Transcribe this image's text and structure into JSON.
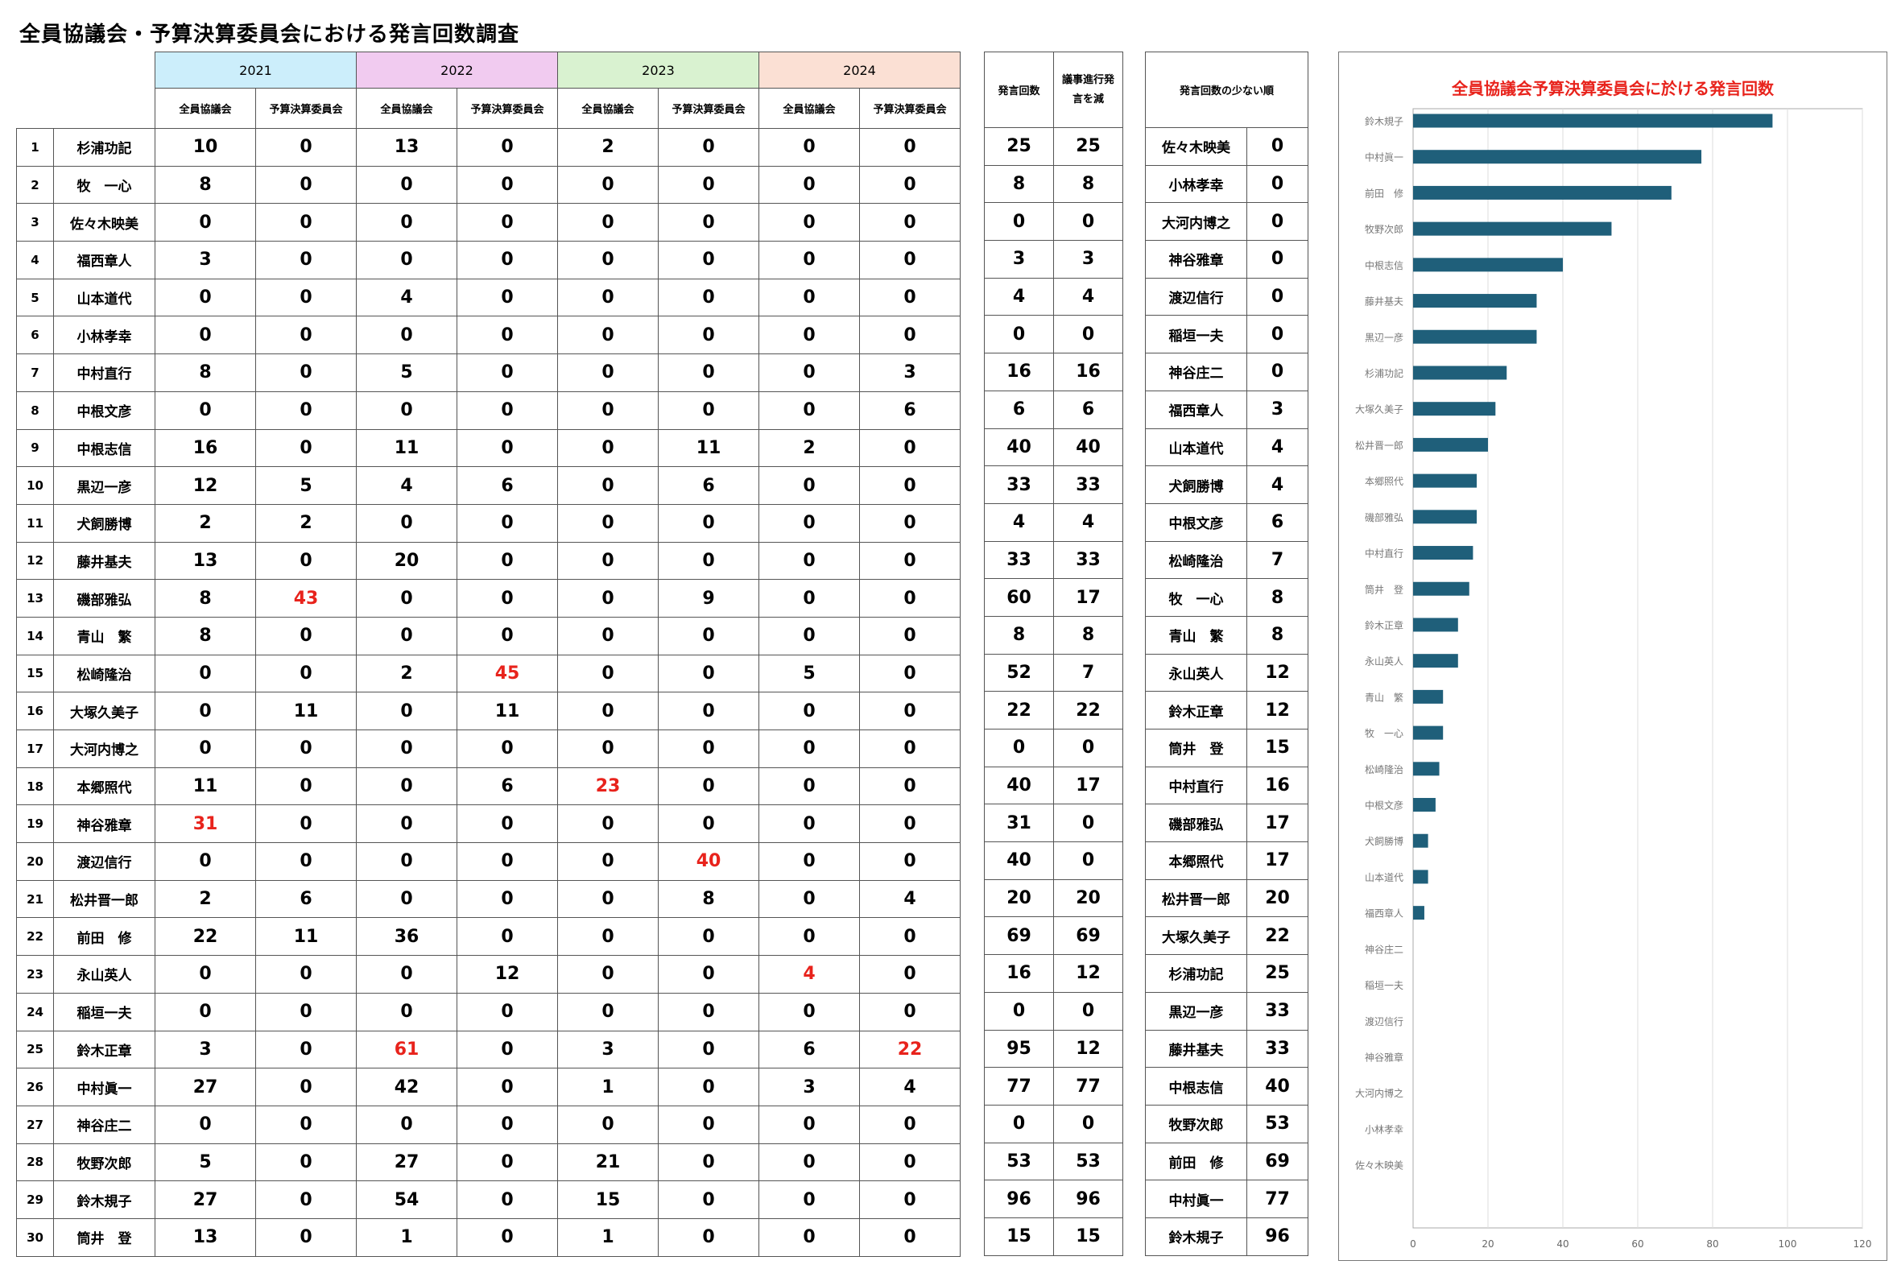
{
  "page_title": "全員協議会・予算決算委員会における発言回数調査",
  "years": [
    "2021",
    "2022",
    "2023",
    "2024"
  ],
  "year_colors": [
    "#cceefb",
    "#f1cbf0",
    "#d9f2d0",
    "#fbe0d4"
  ],
  "sub_headers": [
    "全員協議会",
    "予算決算委員会"
  ],
  "totals_headers": {
    "count": "発言回数",
    "excl": "議事進行発言を減"
  },
  "ranking_header": "発言回数の少ない順",
  "highlight_color": "#e8231c",
  "members": [
    {
      "no": 1,
      "name": "杉浦功記",
      "v": [
        10,
        0,
        13,
        0,
        2,
        0,
        0,
        0
      ],
      "total": 25,
      "excl": 25,
      "red": []
    },
    {
      "no": 2,
      "name": "牧　一心",
      "v": [
        8,
        0,
        0,
        0,
        0,
        0,
        0,
        0
      ],
      "total": 8,
      "excl": 8,
      "red": []
    },
    {
      "no": 3,
      "name": "佐々木映美",
      "v": [
        0,
        0,
        0,
        0,
        0,
        0,
        0,
        0
      ],
      "total": 0,
      "excl": 0,
      "red": []
    },
    {
      "no": 4,
      "name": "福西章人",
      "v": [
        3,
        0,
        0,
        0,
        0,
        0,
        0,
        0
      ],
      "total": 3,
      "excl": 3,
      "red": []
    },
    {
      "no": 5,
      "name": "山本道代",
      "v": [
        0,
        0,
        4,
        0,
        0,
        0,
        0,
        0
      ],
      "total": 4,
      "excl": 4,
      "red": []
    },
    {
      "no": 6,
      "name": "小林孝幸",
      "v": [
        0,
        0,
        0,
        0,
        0,
        0,
        0,
        0
      ],
      "total": 0,
      "excl": 0,
      "red": []
    },
    {
      "no": 7,
      "name": "中村直行",
      "v": [
        8,
        0,
        5,
        0,
        0,
        0,
        0,
        3
      ],
      "total": 16,
      "excl": 16,
      "red": []
    },
    {
      "no": 8,
      "name": "中根文彦",
      "v": [
        0,
        0,
        0,
        0,
        0,
        0,
        0,
        6
      ],
      "total": 6,
      "excl": 6,
      "red": []
    },
    {
      "no": 9,
      "name": "中根志信",
      "v": [
        16,
        0,
        11,
        0,
        0,
        11,
        2,
        0
      ],
      "total": 40,
      "excl": 40,
      "red": []
    },
    {
      "no": 10,
      "name": "黒辺一彦",
      "v": [
        12,
        5,
        4,
        6,
        0,
        6,
        0,
        0
      ],
      "total": 33,
      "excl": 33,
      "red": []
    },
    {
      "no": 11,
      "name": "犬飼勝博",
      "v": [
        2,
        2,
        0,
        0,
        0,
        0,
        0,
        0
      ],
      "total": 4,
      "excl": 4,
      "red": []
    },
    {
      "no": 12,
      "name": "藤井基夫",
      "v": [
        13,
        0,
        20,
        0,
        0,
        0,
        0,
        0
      ],
      "total": 33,
      "excl": 33,
      "red": []
    },
    {
      "no": 13,
      "name": "磯部雅弘",
      "v": [
        8,
        43,
        0,
        0,
        0,
        9,
        0,
        0
      ],
      "total": 60,
      "excl": 17,
      "red": [
        1
      ]
    },
    {
      "no": 14,
      "name": "青山　繁",
      "v": [
        8,
        0,
        0,
        0,
        0,
        0,
        0,
        0
      ],
      "total": 8,
      "excl": 8,
      "red": []
    },
    {
      "no": 15,
      "name": "松崎隆治",
      "v": [
        0,
        0,
        2,
        45,
        0,
        0,
        5,
        0
      ],
      "total": 52,
      "excl": 7,
      "red": [
        3
      ]
    },
    {
      "no": 16,
      "name": "大塚久美子",
      "v": [
        0,
        11,
        0,
        11,
        0,
        0,
        0,
        0
      ],
      "total": 22,
      "excl": 22,
      "red": []
    },
    {
      "no": 17,
      "name": "大河内博之",
      "v": [
        0,
        0,
        0,
        0,
        0,
        0,
        0,
        0
      ],
      "total": 0,
      "excl": 0,
      "red": []
    },
    {
      "no": 18,
      "name": "本郷照代",
      "v": [
        11,
        0,
        0,
        6,
        23,
        0,
        0,
        0
      ],
      "total": 40,
      "excl": 17,
      "red": [
        4
      ]
    },
    {
      "no": 19,
      "name": "神谷雅章",
      "v": [
        31,
        0,
        0,
        0,
        0,
        0,
        0,
        0
      ],
      "total": 31,
      "excl": 0,
      "red": [
        0
      ]
    },
    {
      "no": 20,
      "name": "渡辺信行",
      "v": [
        0,
        0,
        0,
        0,
        0,
        40,
        0,
        0
      ],
      "total": 40,
      "excl": 0,
      "red": [
        5
      ]
    },
    {
      "no": 21,
      "name": "松井晋一郎",
      "v": [
        2,
        6,
        0,
        0,
        0,
        8,
        0,
        4
      ],
      "total": 20,
      "excl": 20,
      "red": []
    },
    {
      "no": 22,
      "name": "前田　修",
      "v": [
        22,
        11,
        36,
        0,
        0,
        0,
        0,
        0
      ],
      "total": 69,
      "excl": 69,
      "red": []
    },
    {
      "no": 23,
      "name": "永山英人",
      "v": [
        0,
        0,
        0,
        12,
        0,
        0,
        4,
        0
      ],
      "total": 16,
      "excl": 12,
      "red": [
        6
      ]
    },
    {
      "no": 24,
      "name": "稲垣一夫",
      "v": [
        0,
        0,
        0,
        0,
        0,
        0,
        0,
        0
      ],
      "total": 0,
      "excl": 0,
      "red": []
    },
    {
      "no": 25,
      "name": "鈴木正章",
      "v": [
        3,
        0,
        61,
        0,
        3,
        0,
        6,
        22
      ],
      "total": 95,
      "excl": 12,
      "red": [
        2,
        7
      ]
    },
    {
      "no": 26,
      "name": "中村眞一",
      "v": [
        27,
        0,
        42,
        0,
        1,
        0,
        3,
        4
      ],
      "total": 77,
      "excl": 77,
      "red": []
    },
    {
      "no": 27,
      "name": "神谷庄二",
      "v": [
        0,
        0,
        0,
        0,
        0,
        0,
        0,
        0
      ],
      "total": 0,
      "excl": 0,
      "red": []
    },
    {
      "no": 28,
      "name": "牧野次郎",
      "v": [
        5,
        0,
        27,
        0,
        21,
        0,
        0,
        0
      ],
      "total": 53,
      "excl": 53,
      "red": []
    },
    {
      "no": 29,
      "name": "鈴木規子",
      "v": [
        27,
        0,
        54,
        0,
        15,
        0,
        0,
        0
      ],
      "total": 96,
      "excl": 96,
      "red": []
    },
    {
      "no": 30,
      "name": "筒井　登",
      "v": [
        13,
        0,
        1,
        0,
        1,
        0,
        0,
        0
      ],
      "total": 15,
      "excl": 15,
      "red": []
    }
  ],
  "ranking": [
    {
      "name": "佐々木映美",
      "value": 0
    },
    {
      "name": "小林孝幸",
      "value": 0
    },
    {
      "name": "大河内博之",
      "value": 0
    },
    {
      "name": "神谷雅章",
      "value": 0
    },
    {
      "name": "渡辺信行",
      "value": 0
    },
    {
      "name": "稲垣一夫",
      "value": 0
    },
    {
      "name": "神谷庄二",
      "value": 0
    },
    {
      "name": "福西章人",
      "value": 3
    },
    {
      "name": "山本道代",
      "value": 4
    },
    {
      "name": "犬飼勝博",
      "value": 4
    },
    {
      "name": "中根文彦",
      "value": 6
    },
    {
      "name": "松崎隆治",
      "value": 7
    },
    {
      "name": "牧　一心",
      "value": 8
    },
    {
      "name": "青山　繁",
      "value": 8
    },
    {
      "name": "永山英人",
      "value": 12
    },
    {
      "name": "鈴木正章",
      "value": 12
    },
    {
      "name": "筒井　登",
      "value": 15
    },
    {
      "name": "中村直行",
      "value": 16
    },
    {
      "name": "磯部雅弘",
      "value": 17
    },
    {
      "name": "本郷照代",
      "value": 17
    },
    {
      "name": "松井晋一郎",
      "value": 20
    },
    {
      "name": "大塚久美子",
      "value": 22
    },
    {
      "name": "杉浦功記",
      "value": 25
    },
    {
      "name": "黒辺一彦",
      "value": 33
    },
    {
      "name": "藤井基夫",
      "value": 33
    },
    {
      "name": "中根志信",
      "value": 40
    },
    {
      "name": "牧野次郎",
      "value": 53
    },
    {
      "name": "前田　修",
      "value": 69
    },
    {
      "name": "中村眞一",
      "value": 77
    },
    {
      "name": "鈴木規子",
      "value": 96
    }
  ],
  "chart_data": {
    "type": "bar",
    "orientation": "horizontal",
    "title": "全員協議会予算決算委員会に於ける発言回数",
    "title_color": "#e8231c",
    "bar_color": "#1f5f7a",
    "categories": [
      "鈴木規子",
      "中村眞一",
      "前田　修",
      "牧野次郎",
      "中根志信",
      "藤井基夫",
      "黒辺一彦",
      "杉浦功記",
      "大塚久美子",
      "松井晋一郎",
      "本郷照代",
      "磯部雅弘",
      "中村直行",
      "筒井　登",
      "鈴木正章",
      "永山英人",
      "青山　繁",
      "牧　一心",
      "松崎隆治",
      "中根文彦",
      "犬飼勝博",
      "山本道代",
      "福西章人",
      "神谷庄二",
      "稲垣一夫",
      "渡辺信行",
      "神谷雅章",
      "大河内博之",
      "小林孝幸",
      "佐々木映美"
    ],
    "values": [
      96,
      77,
      69,
      53,
      40,
      33,
      33,
      25,
      22,
      20,
      17,
      17,
      16,
      15,
      12,
      12,
      8,
      8,
      7,
      6,
      4,
      4,
      3,
      0,
      0,
      0,
      0,
      0,
      0,
      0
    ],
    "xlim": [
      0,
      120
    ],
    "xticks": [
      0,
      20,
      40,
      60,
      80,
      100,
      120
    ],
    "grid": true,
    "xlabel": "",
    "ylabel": ""
  }
}
